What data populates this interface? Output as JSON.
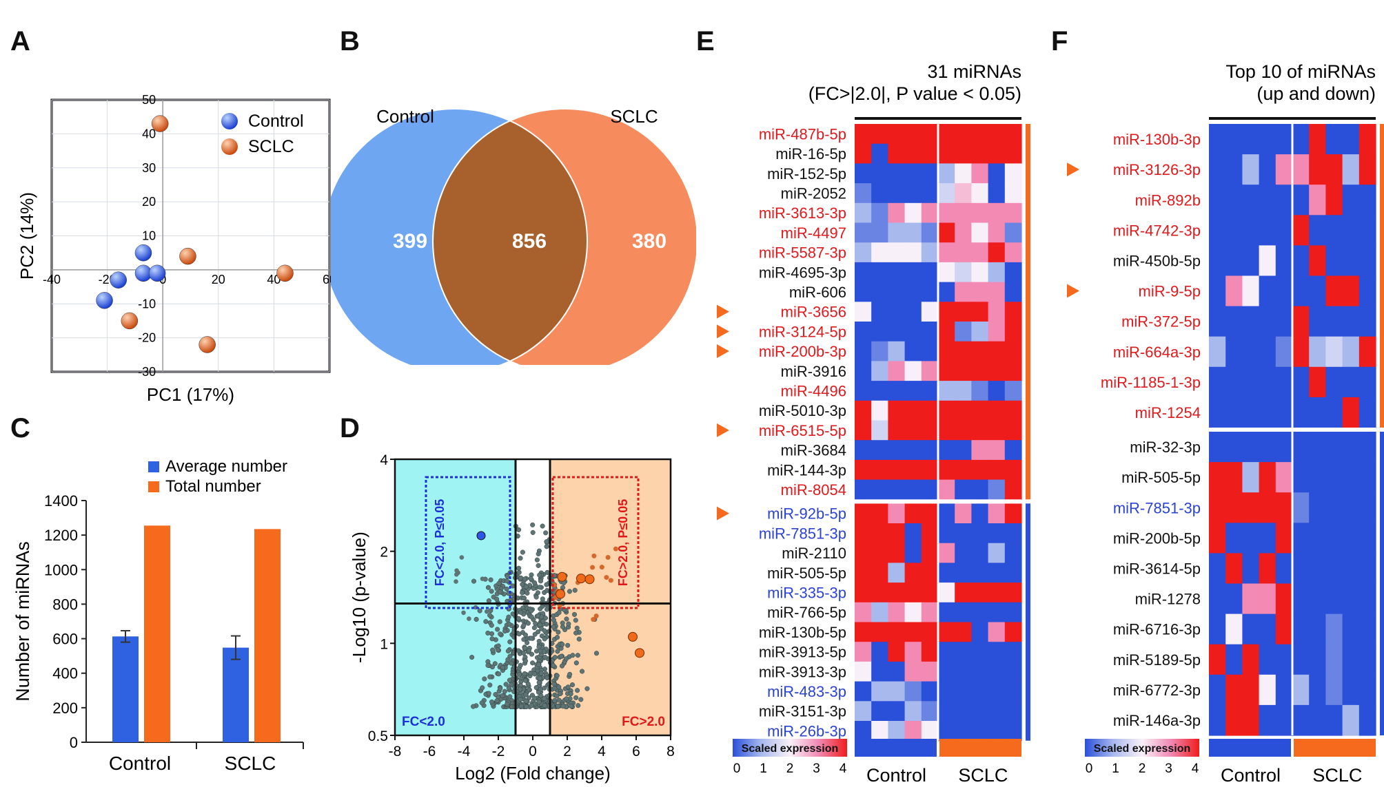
{
  "panels": {
    "A": "A",
    "B": "B",
    "C": "C",
    "D": "D",
    "E": "E",
    "F": "F"
  },
  "colors": {
    "blue": "#2f62e0",
    "orange": "#f56a1c",
    "red": "#e31a1c",
    "mirBlue": "#2a42d6",
    "mirRed": "#e0191d",
    "heatBlue": "#2a4fd8",
    "heatRed": "#ef1c1c",
    "venn_blue": "#6fa6f2",
    "venn_orange": "#f68c5e",
    "venn_overlap": "#a8602c",
    "cyan": "#9ff3f3",
    "peach": "#fdd3ac"
  },
  "chart_data": [
    {
      "panel": "A",
      "type": "scatter",
      "xlabel": "PC1 (17%)",
      "ylabel": "PC2 (14%)",
      "xlim": [
        -40,
        60
      ],
      "ylim": [
        -30,
        50
      ],
      "xticks": [
        -40,
        -20,
        0,
        20,
        40,
        60
      ],
      "yticks": [
        -30,
        -20,
        -10,
        0,
        10,
        20,
        30,
        40,
        50
      ],
      "legend": [
        "Control",
        "SCLC"
      ],
      "series": [
        {
          "name": "Control",
          "points": [
            [
              -7,
              5
            ],
            [
              -7,
              -1
            ],
            [
              -2,
              -1
            ],
            [
              -16,
              -3
            ],
            [
              -21,
              -9
            ]
          ]
        },
        {
          "name": "SCLC",
          "points": [
            [
              -1,
              43
            ],
            [
              9,
              4
            ],
            [
              44,
              -1
            ],
            [
              -12,
              -15
            ],
            [
              16,
              -22
            ]
          ]
        }
      ]
    },
    {
      "panel": "B",
      "type": "venn",
      "sets": [
        "Control",
        "SCLC"
      ],
      "values": {
        "control_only": "399",
        "both": "856",
        "sclc_only": "380"
      }
    },
    {
      "panel": "C",
      "type": "bar",
      "categories": [
        "Control",
        "SCLC"
      ],
      "ylabel": "Number of miRNAs",
      "ylim": [
        0,
        1400
      ],
      "yticks": [
        0,
        200,
        400,
        600,
        800,
        1000,
        1200,
        1400
      ],
      "series": [
        {
          "name": "Average number",
          "values": [
            613,
            548
          ],
          "errors": [
            33,
            68
          ]
        },
        {
          "name": "Total number",
          "values": [
            1255,
            1235
          ]
        }
      ]
    },
    {
      "panel": "D",
      "type": "scatter",
      "xlabel": "Log2 (Fold change)",
      "ylabel": "-Log10 (p-value)",
      "xlim": [
        -8,
        8
      ],
      "xticks": [
        -8,
        -6,
        -4,
        -2,
        0,
        2,
        4,
        6,
        8
      ],
      "yticks": [
        "0.5",
        "1",
        "2",
        "4"
      ],
      "box_left": "FC<2.0, P≤0.05",
      "box_right": "FC>2.0, P≤0.05",
      "corner_left": "FC<2.0",
      "corner_right": "FC>2.0",
      "highlight_down": [
        [
          -3,
          2.25
        ]
      ],
      "highlight_up": [
        [
          1.7,
          1.65
        ],
        [
          2.8,
          1.63
        ],
        [
          3.3,
          1.62
        ],
        [
          1.6,
          1.45
        ],
        [
          5.8,
          1.05
        ],
        [
          6.2,
          0.93
        ]
      ]
    },
    {
      "panel": "E",
      "type": "heatmap",
      "title_line1": "31 miRNAs",
      "title_line2": "(FC>|2.0|, P value < 0.05)",
      "groups": [
        "Control",
        "SCLC"
      ],
      "colorbar_title": "Scaled expression",
      "colorbar_ticks": [
        "0",
        "1",
        "2",
        "3",
        "4"
      ],
      "rows": [
        {
          "label": "miR-487b-5p",
          "color": "red",
          "arrow": false
        },
        {
          "label": "miR-16-5p",
          "color": "black",
          "arrow": false
        },
        {
          "label": "miR-152-5p",
          "color": "black",
          "arrow": false
        },
        {
          "label": "miR-2052",
          "color": "black",
          "arrow": false
        },
        {
          "label": "miR-3613-3p",
          "color": "red",
          "arrow": false
        },
        {
          "label": "miR-4497",
          "color": "red",
          "arrow": false
        },
        {
          "label": "miR-5587-3p",
          "color": "red",
          "arrow": false
        },
        {
          "label": "miR-4695-3p",
          "color": "black",
          "arrow": false
        },
        {
          "label": "miR-606",
          "color": "black",
          "arrow": false
        },
        {
          "label": "miR-3656",
          "color": "red",
          "arrow": true
        },
        {
          "label": "miR-3124-5p",
          "color": "red",
          "arrow": true
        },
        {
          "label": "miR-200b-3p",
          "color": "red",
          "arrow": true
        },
        {
          "label": "miR-3916",
          "color": "black",
          "arrow": false
        },
        {
          "label": "miR-4496",
          "color": "red",
          "arrow": false
        },
        {
          "label": "miR-5010-3p",
          "color": "black",
          "arrow": false
        },
        {
          "label": "miR-6515-5p",
          "color": "red",
          "arrow": true
        },
        {
          "label": "miR-3684",
          "color": "black",
          "arrow": false
        },
        {
          "label": "miR-144-3p",
          "color": "black",
          "arrow": false
        },
        {
          "label": "miR-8054",
          "color": "red",
          "arrow": false
        },
        {
          "label": "miR-92b-5p",
          "color": "blue",
          "arrow": true
        },
        {
          "label": "miR-7851-3p",
          "color": "blue",
          "arrow": false
        },
        {
          "label": "miR-2110",
          "color": "black",
          "arrow": false
        },
        {
          "label": "miR-505-5p",
          "color": "black",
          "arrow": false
        },
        {
          "label": "miR-335-3p",
          "color": "blue",
          "arrow": false
        },
        {
          "label": "miR-766-5p",
          "color": "black",
          "arrow": false
        },
        {
          "label": "miR-130b-5p",
          "color": "black",
          "arrow": false
        },
        {
          "label": "miR-3913-5p",
          "color": "black",
          "arrow": false
        },
        {
          "label": "miR-3913-3p",
          "color": "black",
          "arrow": false
        },
        {
          "label": "miR-483-3p",
          "color": "blue",
          "arrow": false
        },
        {
          "label": "miR-3151-3p",
          "color": "black",
          "arrow": false
        },
        {
          "label": "miR-26b-3p",
          "color": "blue",
          "arrow": false
        }
      ],
      "values": [
        [
          4,
          4,
          4,
          4,
          4,
          4,
          4,
          4,
          4,
          4
        ],
        [
          4,
          0,
          4,
          4,
          4,
          4,
          4,
          4,
          4,
          4
        ],
        [
          0,
          0,
          0,
          0,
          0,
          1,
          2,
          3,
          0,
          2
        ],
        [
          0.5,
          0,
          0,
          0,
          0,
          1.5,
          2.5,
          2,
          0,
          2
        ],
        [
          1,
          0.5,
          3,
          2,
          3,
          3,
          3,
          3,
          3,
          3
        ],
        [
          0.5,
          0.5,
          1,
          1,
          0.5,
          4,
          3,
          2,
          3,
          0.5
        ],
        [
          1,
          2,
          2,
          2,
          1,
          3,
          3,
          3,
          4,
          3
        ],
        [
          0,
          0,
          0,
          0,
          0,
          2,
          1.5,
          2,
          1,
          0
        ],
        [
          0,
          0,
          0,
          0,
          0,
          0,
          3,
          3,
          3,
          0
        ],
        [
          2,
          0,
          0,
          0,
          2,
          4,
          4,
          4,
          3,
          4
        ],
        [
          0,
          0,
          0,
          0,
          0,
          4,
          0.5,
          1,
          3,
          4
        ],
        [
          0,
          0.5,
          1,
          0,
          0,
          4,
          4,
          4,
          4,
          4
        ],
        [
          0,
          1,
          3,
          2,
          3,
          4,
          4,
          4,
          4,
          4
        ],
        [
          0,
          0,
          0,
          0,
          0,
          1,
          1,
          0.5,
          0,
          0.5
        ],
        [
          4,
          2,
          4,
          4,
          4,
          4,
          4,
          4,
          4,
          4
        ],
        [
          4,
          1.5,
          4,
          4,
          4,
          4,
          4,
          4,
          4,
          4
        ],
        [
          0,
          0,
          0,
          0,
          0,
          0,
          0,
          3,
          3,
          0
        ],
        [
          4,
          4,
          4,
          4,
          4,
          4,
          4,
          4,
          4,
          4
        ],
        [
          0,
          0,
          0,
          0,
          0,
          3,
          0,
          0,
          0.5,
          4
        ],
        [
          4,
          4,
          3,
          4,
          4,
          0,
          3,
          0,
          3,
          4
        ],
        [
          4,
          4,
          4,
          0,
          4,
          0,
          0,
          0,
          0,
          0
        ],
        [
          4,
          4,
          4,
          0,
          4,
          3,
          0,
          0,
          1,
          0
        ],
        [
          4,
          4,
          1,
          4,
          4,
          0,
          0,
          0,
          0,
          0
        ],
        [
          4,
          4,
          4,
          4,
          4,
          2,
          4,
          4,
          4,
          4
        ],
        [
          3,
          1,
          3,
          2,
          3,
          0,
          0,
          0,
          0,
          0
        ],
        [
          4,
          4,
          4,
          4,
          4,
          4,
          4,
          0,
          3,
          4
        ],
        [
          3,
          0,
          4,
          3,
          4,
          0,
          0,
          0,
          0,
          0
        ],
        [
          2,
          0,
          0,
          3,
          3,
          0,
          0,
          0,
          0,
          0
        ],
        [
          0,
          1,
          1,
          0.5,
          0,
          0,
          0,
          0,
          0,
          0
        ],
        [
          1,
          0,
          0,
          1,
          0.5,
          0,
          0,
          0,
          0,
          0
        ],
        [
          0,
          2,
          1,
          3,
          2,
          0,
          0,
          0,
          0,
          0
        ]
      ]
    },
    {
      "panel": "F",
      "type": "heatmap",
      "title_line1": "Top 10 of miRNAs",
      "title_line2": "(up and down)",
      "groups": [
        "Control",
        "SCLC"
      ],
      "colorbar_title": "Scaled expression",
      "colorbar_ticks": [
        "0",
        "1",
        "2",
        "3",
        "4"
      ],
      "rows": [
        {
          "label": "miR-130b-3p",
          "color": "red",
          "arrow": false
        },
        {
          "label": "miR-3126-3p",
          "color": "red",
          "arrow": true
        },
        {
          "label": "miR-892b",
          "color": "red",
          "arrow": false
        },
        {
          "label": "miR-4742-3p",
          "color": "red",
          "arrow": false
        },
        {
          "label": "miR-450b-5p",
          "color": "black",
          "arrow": false
        },
        {
          "label": "miR-9-5p",
          "color": "red",
          "arrow": true
        },
        {
          "label": "miR-372-5p",
          "color": "red",
          "arrow": false
        },
        {
          "label": "miR-664a-3p",
          "color": "red",
          "arrow": false
        },
        {
          "label": "miR-1185-1-3p",
          "color": "red",
          "arrow": false
        },
        {
          "label": "miR-1254",
          "color": "red",
          "arrow": false
        },
        {
          "label": "miR-32-3p",
          "color": "black",
          "arrow": false
        },
        {
          "label": "miR-505-5p",
          "color": "black",
          "arrow": false
        },
        {
          "label": "miR-7851-3p",
          "color": "blue",
          "arrow": false
        },
        {
          "label": "miR-200b-5p",
          "color": "black",
          "arrow": false
        },
        {
          "label": "miR-3614-5p",
          "color": "black",
          "arrow": false
        },
        {
          "label": "miR-1278",
          "color": "black",
          "arrow": false
        },
        {
          "label": "miR-6716-3p",
          "color": "black",
          "arrow": false
        },
        {
          "label": "miR-5189-5p",
          "color": "black",
          "arrow": false
        },
        {
          "label": "miR-6772-3p",
          "color": "black",
          "arrow": false
        },
        {
          "label": "miR-146a-3p",
          "color": "black",
          "arrow": false
        }
      ],
      "values": [
        [
          0,
          0,
          0,
          0,
          0,
          0,
          4,
          0,
          0,
          4
        ],
        [
          0,
          0,
          1,
          0,
          3,
          3,
          4,
          4,
          1,
          4
        ],
        [
          0,
          0,
          0,
          0,
          0,
          0,
          3,
          4,
          0,
          0
        ],
        [
          0,
          0,
          0,
          0,
          0,
          4,
          0,
          0,
          0,
          0
        ],
        [
          0,
          0,
          0,
          2,
          0,
          0,
          4,
          0,
          0,
          0
        ],
        [
          0,
          3,
          2,
          0,
          0,
          0,
          0,
          4,
          4,
          0
        ],
        [
          0,
          0,
          0,
          0,
          0,
          4,
          0,
          0,
          0,
          0
        ],
        [
          1,
          0,
          0,
          0,
          0.5,
          4,
          1,
          1.5,
          1,
          4
        ],
        [
          0,
          0,
          0,
          0,
          0,
          0,
          4,
          0,
          0,
          0
        ],
        [
          0,
          0,
          0,
          0,
          0,
          0,
          0,
          0,
          4,
          0
        ],
        [
          0,
          0,
          0,
          0,
          0,
          0,
          0,
          0,
          0,
          0
        ],
        [
          4,
          4,
          1,
          4,
          3,
          0,
          0,
          0,
          0,
          0
        ],
        [
          4,
          4,
          4,
          4,
          4,
          0.5,
          0,
          0,
          0,
          0
        ],
        [
          4,
          0,
          0,
          0,
          4,
          0,
          0,
          0,
          0,
          0
        ],
        [
          0,
          4,
          0,
          4,
          0,
          0,
          0,
          0,
          0,
          0
        ],
        [
          0,
          0,
          3,
          3,
          4,
          0,
          0,
          0,
          0,
          0
        ],
        [
          0,
          2,
          0,
          0,
          4,
          0,
          0,
          0.5,
          0,
          0
        ],
        [
          4,
          0,
          4,
          0,
          0,
          0,
          0,
          0.5,
          0,
          0
        ],
        [
          0,
          4,
          4,
          2,
          0,
          1,
          0,
          0.5,
          0,
          0
        ],
        [
          0,
          4,
          4,
          0,
          0,
          0,
          0,
          0,
          1,
          0
        ]
      ]
    }
  ]
}
